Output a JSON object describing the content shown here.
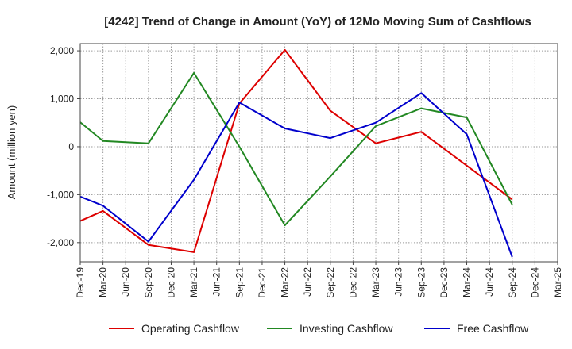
{
  "chart_data": {
    "type": "line",
    "title": "[4242]  Trend of Change in Amount (YoY) of 12Mo Moving Sum of Cashflows",
    "ylabel": "Amount (million yen)",
    "xlabel": "",
    "ylim": [
      -2400,
      2150
    ],
    "yticks": [
      2000,
      1000,
      0,
      -1000,
      -2000
    ],
    "ytick_labels": [
      "2,000",
      "1,000",
      "0",
      "-1,000",
      "-2,000"
    ],
    "categories": [
      "Dec-19",
      "Mar-20",
      "Jun-20",
      "Sep-20",
      "Dec-20",
      "Mar-21",
      "Jun-21",
      "Sep-21",
      "Dec-21",
      "Mar-22",
      "Jun-22",
      "Sep-22",
      "Dec-22",
      "Mar-23",
      "Jun-23",
      "Sep-23",
      "Dec-23",
      "Mar-24",
      "Jun-24",
      "Sep-24",
      "Dec-24",
      "Mar-25"
    ],
    "grid": true,
    "legend_position": "bottom",
    "series": [
      {
        "name": "Operating Cashflow",
        "color": "#dd0000",
        "values": [
          -1550,
          -1340,
          null,
          -2050,
          null,
          -2200,
          null,
          900,
          null,
          2020,
          null,
          750,
          null,
          70,
          null,
          310,
          null,
          null,
          null,
          -1100,
          null,
          null
        ]
      },
      {
        "name": "Investing Cashflow",
        "color": "#228822",
        "values": [
          510,
          120,
          null,
          70,
          null,
          1540,
          null,
          0,
          null,
          -1640,
          null,
          -620,
          null,
          430,
          null,
          800,
          null,
          610,
          null,
          -1210,
          null,
          null
        ]
      },
      {
        "name": "Free Cashflow",
        "color": "#0000cc",
        "values": [
          -1040,
          -1230,
          null,
          -1980,
          null,
          -690,
          null,
          920,
          null,
          380,
          null,
          180,
          null,
          500,
          null,
          1120,
          null,
          260,
          null,
          -2300,
          null,
          null
        ]
      }
    ]
  }
}
